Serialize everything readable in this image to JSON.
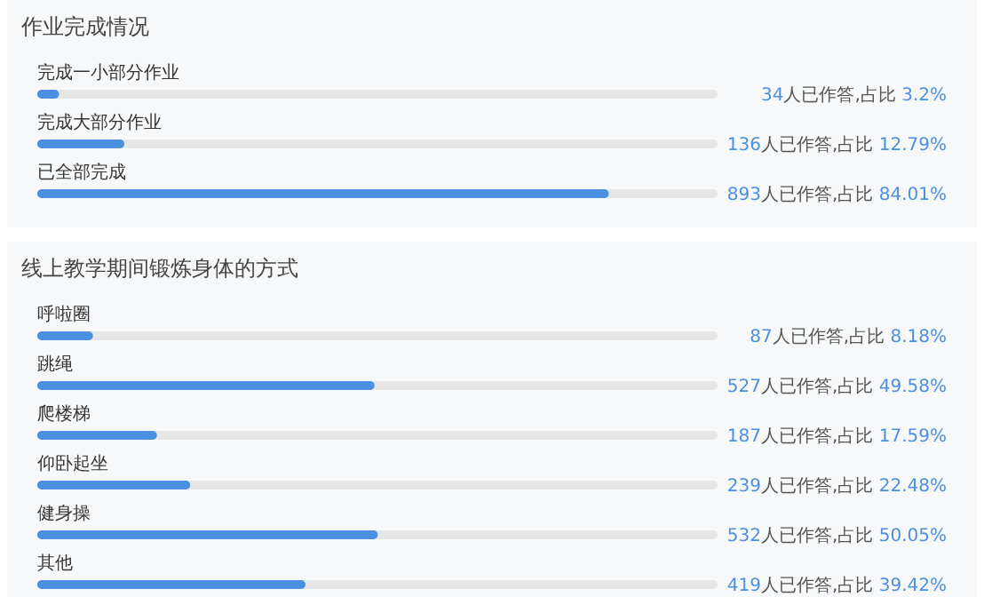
{
  "chart_data": [
    {
      "type": "bar",
      "orientation": "horizontal",
      "title": "作业完成情况",
      "categories": [
        "完成一小部分作业",
        "完成大部分作业",
        "已全部完成"
      ],
      "values": [
        3.2,
        12.79,
        84.01
      ],
      "value_labels": [
        "34人已作答,占比 3.2%",
        "136人已作答,占比 12.79%",
        "893人已作答,占比 84.01%"
      ],
      "color": "#4a8fe0",
      "xlim": [
        0,
        100
      ],
      "tick_labels": false
    },
    {
      "type": "bar",
      "orientation": "horizontal",
      "title": "线上教学期间锻炼身体的方式",
      "categories": [
        "呼啦圈",
        "跳绳",
        "爬楼梯",
        "仰卧起坐",
        "健身操",
        "其他"
      ],
      "values": [
        8.18,
        49.58,
        17.59,
        22.48,
        50.05,
        39.42
      ],
      "value_labels": [
        "87人已作答,占比 8.18%",
        "527人已作答,占比 49.58%",
        "187人已作答,占比 17.59%",
        "239人已作答,占比 22.48%",
        "532人已作答,占比 50.05%",
        "419人已作答,占比 39.42%"
      ],
      "color": "#4a8fe0",
      "xlim": [
        0,
        100
      ],
      "tick_labels": false
    }
  ]
}
